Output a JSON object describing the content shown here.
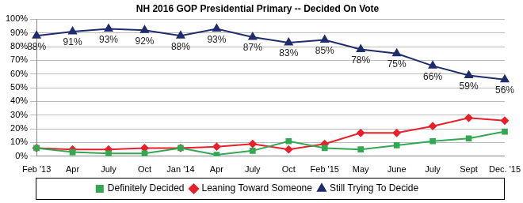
{
  "chart_data": {
    "type": "line",
    "title": "NH 2016 GOP Presidential Primary -- Decided On Vote",
    "categories": [
      "Feb '13",
      "Apr",
      "July",
      "Oct",
      "Jan '14",
      "Apr",
      "July",
      "Oct",
      "Feb '15",
      "May",
      "June",
      "July",
      "Sept",
      "Dec. '15"
    ],
    "series": [
      {
        "name": "Definitely Decided",
        "color": "#33a852",
        "marker": "square",
        "values": [
          6,
          3,
          2,
          2,
          6,
          1,
          4,
          11,
          6,
          5,
          8,
          11,
          13,
          18
        ]
      },
      {
        "name": "Leaning Toward Someone",
        "color": "#e8202a",
        "marker": "diamond",
        "values": [
          6,
          5,
          5,
          6,
          6,
          7,
          9,
          5,
          9,
          17,
          17,
          22,
          28,
          26
        ]
      },
      {
        "name": "Still Trying To Decide",
        "color": "#1f2d6e",
        "marker": "triangle",
        "data_labels": true,
        "values": [
          88,
          91,
          93,
          92,
          88,
          93,
          87,
          83,
          85,
          78,
          75,
          66,
          59,
          56
        ],
        "value_labels": [
          "88%",
          "91%",
          "93%",
          "92%",
          "88%",
          "93%",
          "87%",
          "83%",
          "85%",
          "78%",
          "75%",
          "66%",
          "59%",
          "56%"
        ]
      }
    ],
    "ylim": [
      0,
      100
    ],
    "yticks": [
      {
        "value": 0,
        "label": "0%"
      },
      {
        "value": 10,
        "label": "10%"
      },
      {
        "value": 20,
        "label": "20%"
      },
      {
        "value": 30,
        "label": "30%"
      },
      {
        "value": 40,
        "label": "40%"
      },
      {
        "value": 50,
        "label": "50%"
      },
      {
        "value": 60,
        "label": "60%"
      },
      {
        "value": 70,
        "label": "70%"
      },
      {
        "value": 80,
        "label": "80%"
      },
      {
        "value": 90,
        "label": "90%"
      },
      {
        "value": 100,
        "label": "100%"
      }
    ],
    "grid": true,
    "legend": "bottom"
  }
}
